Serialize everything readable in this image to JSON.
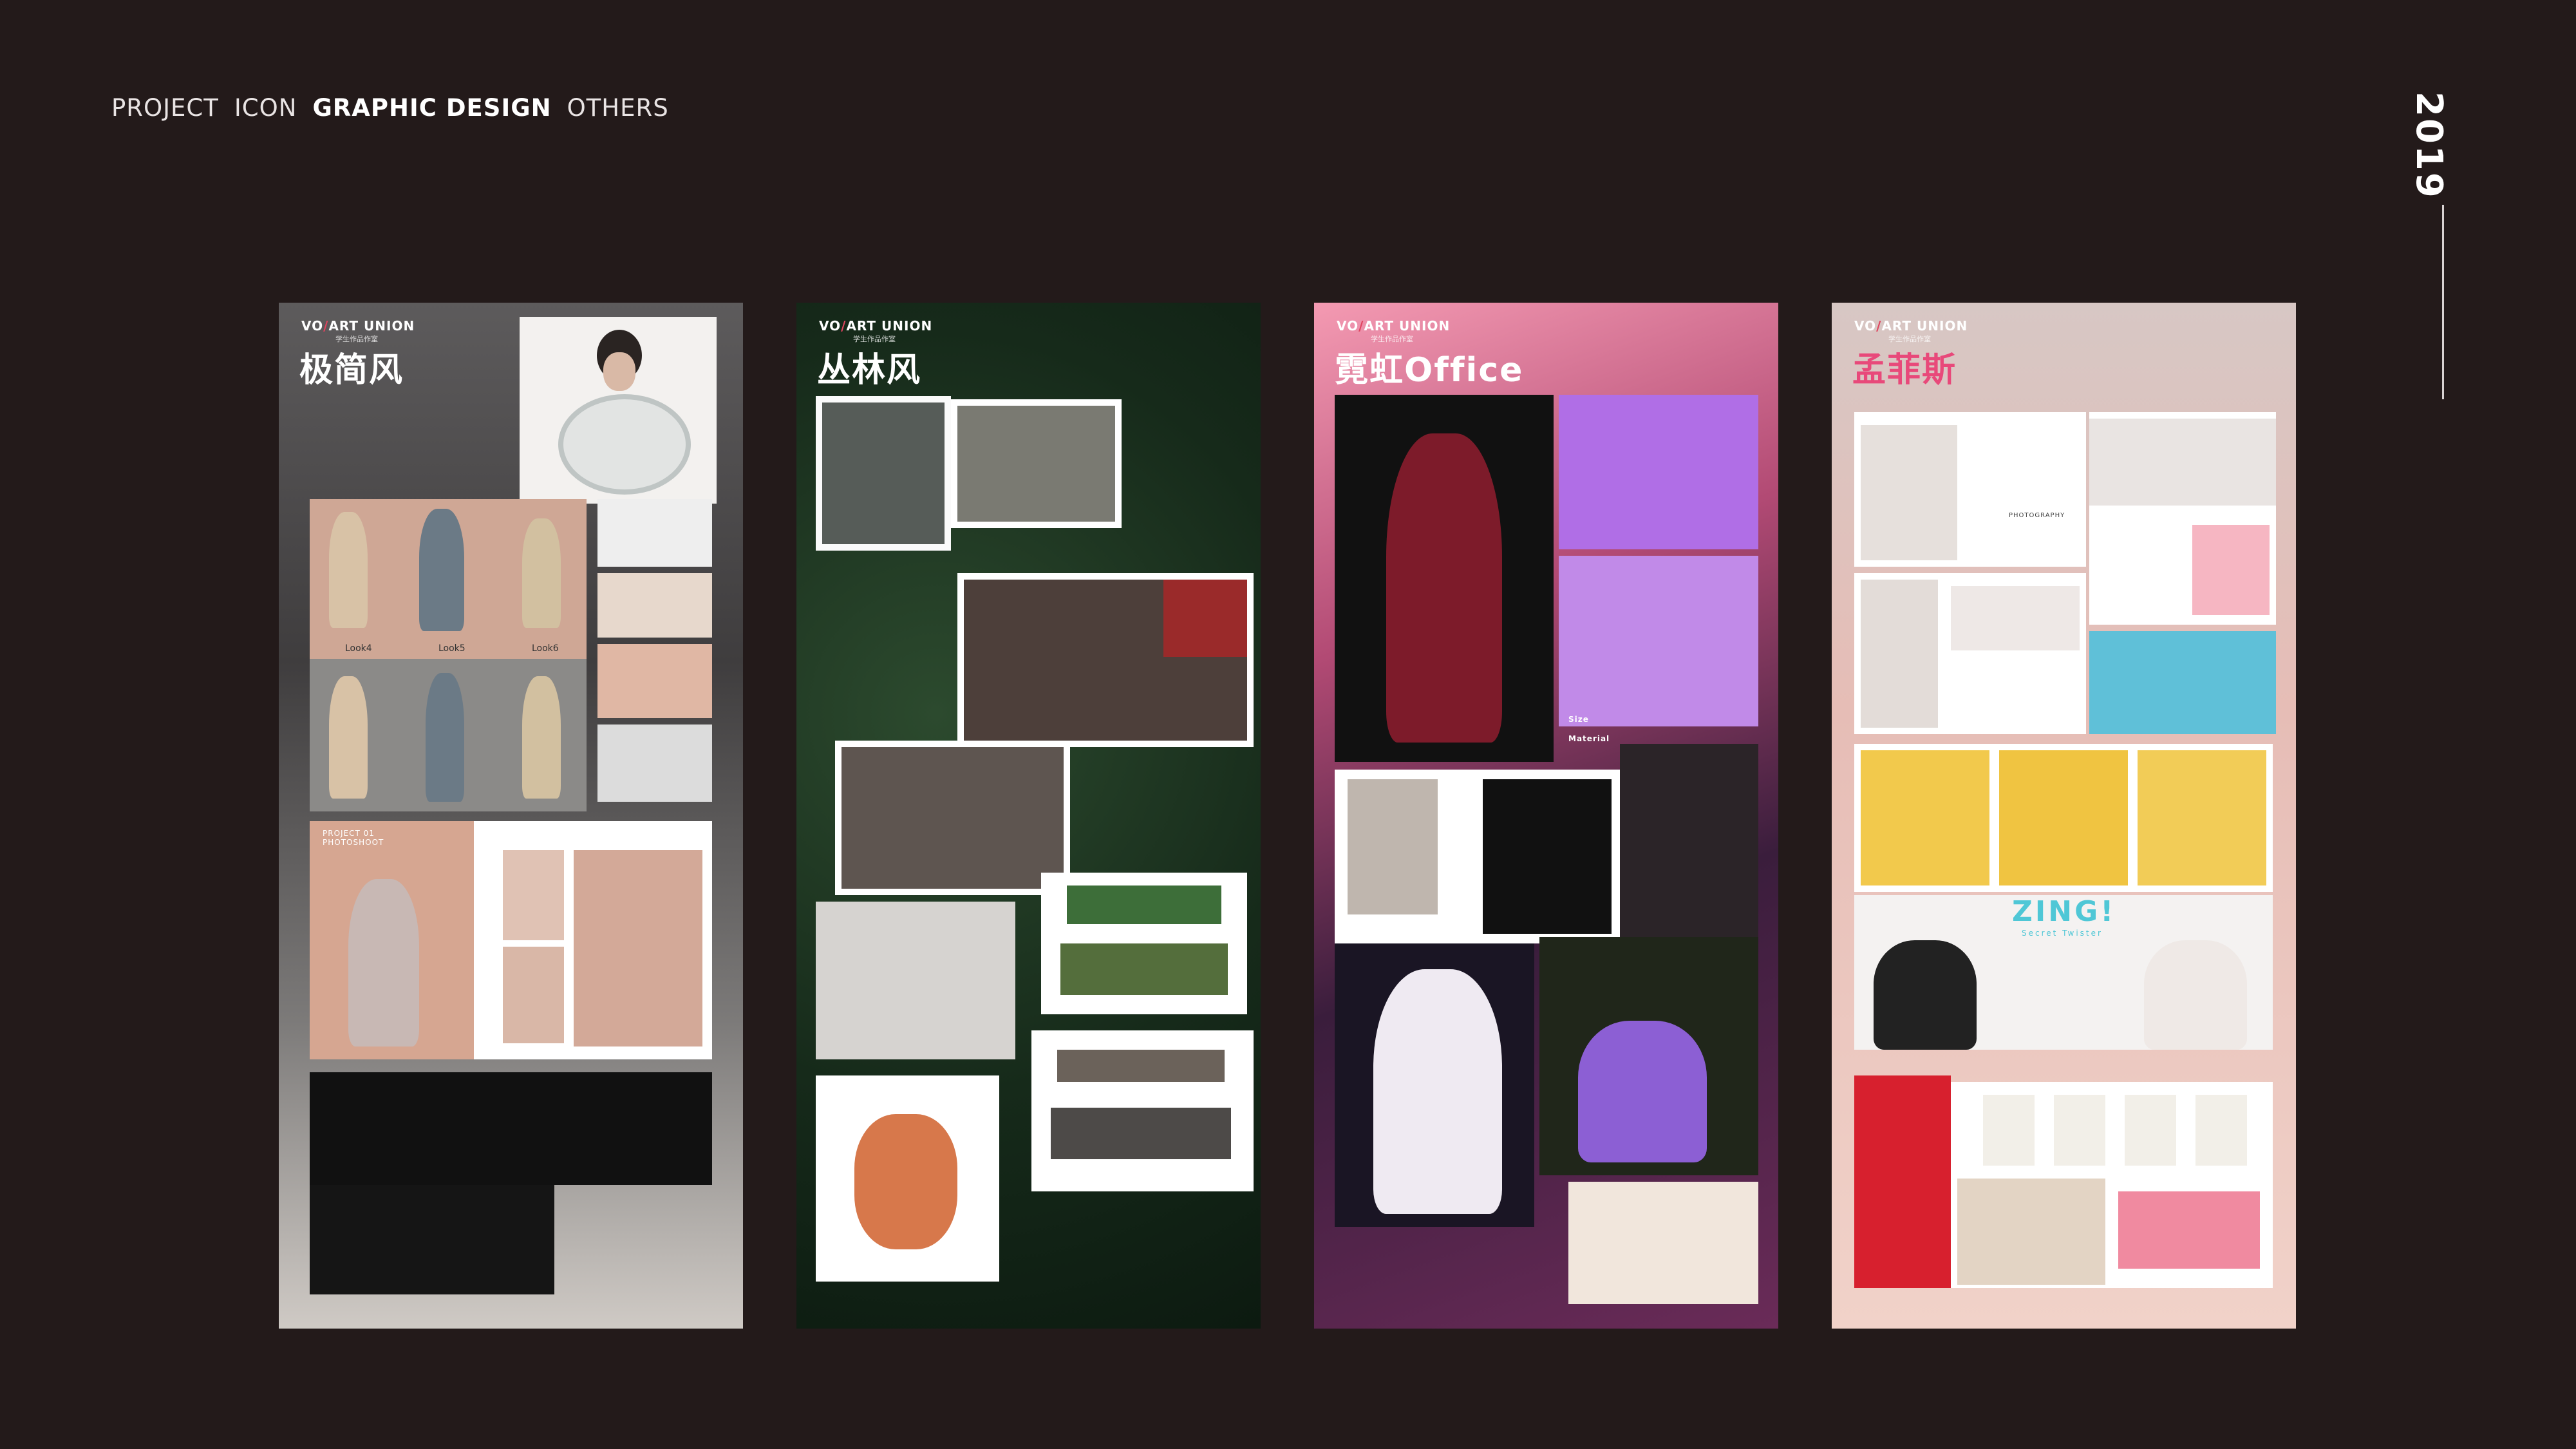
{
  "nav": {
    "items": [
      "PROJECT",
      "ICON",
      "GRAPHIC DESIGN",
      "OTHERS"
    ],
    "active": "GRAPHIC DESIGN"
  },
  "year": "2019",
  "colors": {
    "background": "#231a1a",
    "brand_slash": "#e0445f",
    "title_pink": "#e8497a",
    "zing_cyan": "#4fc7d6"
  },
  "panels": [
    {
      "brand_left": "VO",
      "brand_right": "ART UNION",
      "brand_sub": "学生作品作室",
      "title": "极简风",
      "captions": [
        "Look4",
        "Look5",
        "Look6"
      ],
      "project_label": "PROJECT 01\nPHOTOSHOOT"
    },
    {
      "brand_left": "VO",
      "brand_right": "ART UNION",
      "brand_sub": "学生作品作室",
      "title": "丛林风"
    },
    {
      "brand_left": "VO",
      "brand_right": "ART UNION",
      "brand_sub": "学生作品作室",
      "title": "霓虹Office",
      "side_labels": [
        "Size",
        "Material"
      ]
    },
    {
      "brand_left": "VO",
      "brand_right": "ART UNION",
      "brand_sub": "学生作品作室",
      "title": "孟菲斯",
      "photography_label": "PHOTOGRAPHY",
      "zing_title": "ZING!",
      "zing_sub": "Secret Twister"
    }
  ]
}
